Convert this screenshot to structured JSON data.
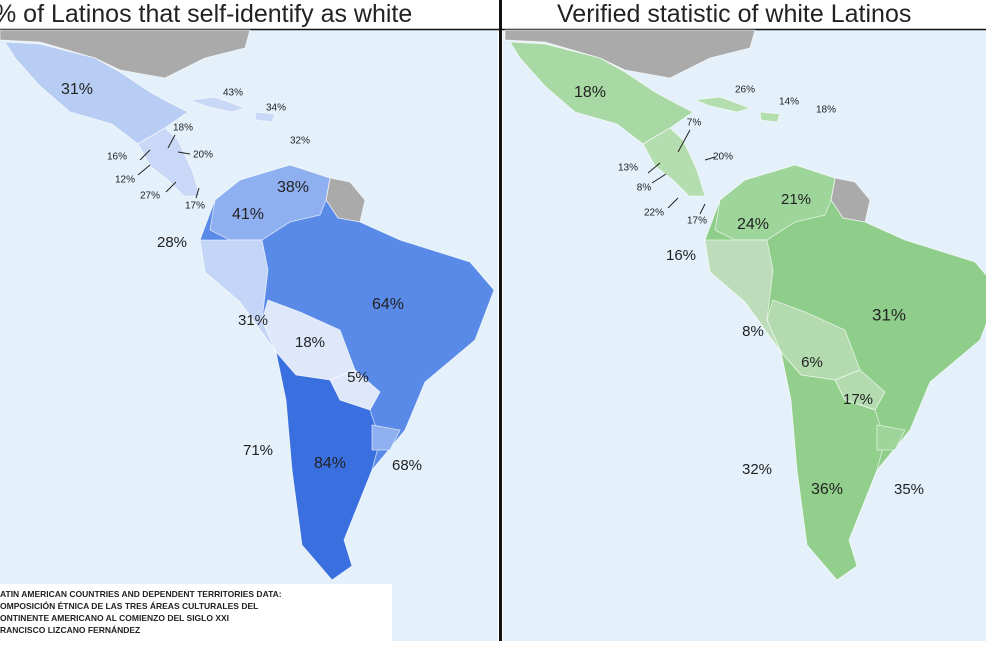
{
  "panels": [
    {
      "title": "% of Latinos that self-identify as white",
      "labels": [
        "31%",
        "43%",
        "34%",
        "32%",
        "18%",
        "16%",
        "20%",
        "12%",
        "27%",
        "17%",
        "41%",
        "38%",
        "28%",
        "64%",
        "31%",
        "18%",
        "5%",
        "71%",
        "84%",
        "68%"
      ]
    },
    {
      "title": "Verified statistic of white Latinos",
      "labels": [
        "18%",
        "26%",
        "14%",
        "18%",
        "7%",
        "20%",
        "13%",
        "8%",
        "22%",
        "17%",
        "21%",
        "24%",
        "16%",
        "31%",
        "8%",
        "6%",
        "17%",
        "32%",
        "36%",
        "35%"
      ]
    }
  ],
  "source": [
    "ATIN AMERICAN COUNTRIES AND DEPENDENT TERRITORIES DATA:",
    "OMPOSICIÓN ÉTNICA DE LAS TRES ÁREAS CULTURALES DEL",
    "ONTINENTE AMERICANO AL COMIENZO DEL SIGLO XXI",
    "RANCISCO LIZCANO FERNÁNDEZ"
  ]
}
